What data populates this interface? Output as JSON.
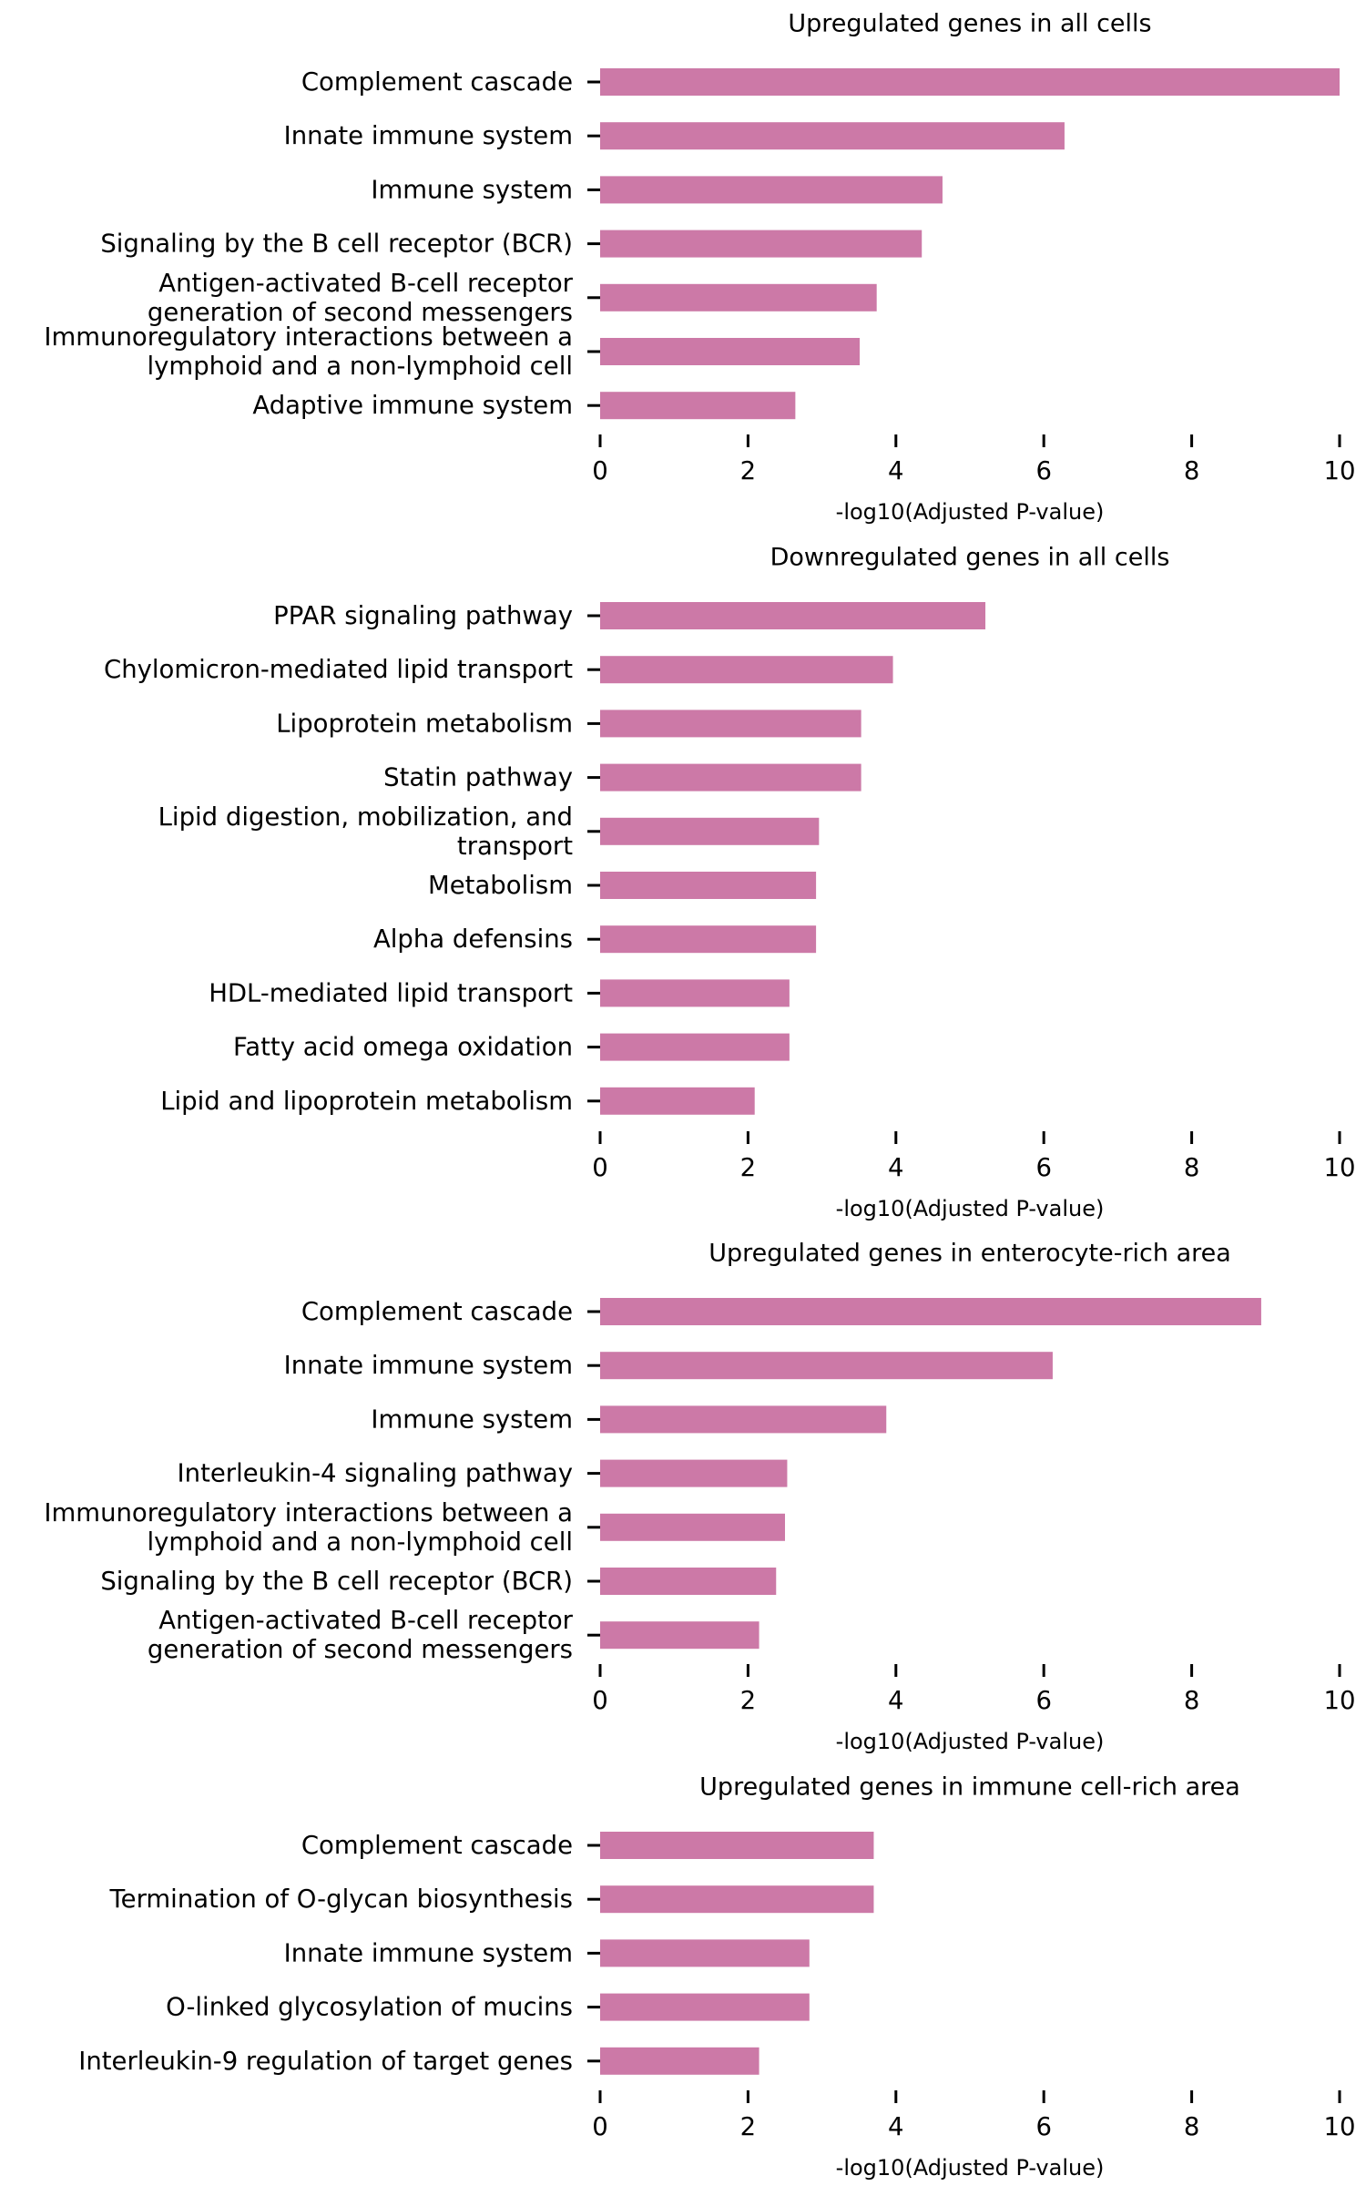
{
  "style": {
    "bar_color": "#cc79a7",
    "text_color": "#000000"
  },
  "chart_data": [
    {
      "type": "bar",
      "orientation": "horizontal",
      "title": "Upregulated genes in all cells",
      "xlabel": "-log10(Adjusted P-value)",
      "ylabel": "",
      "xlim": [
        0,
        10
      ],
      "xticks": [
        0,
        2,
        4,
        6,
        8,
        10
      ],
      "grid": false,
      "categories": [
        [
          "Complement cascade"
        ],
        [
          "Innate immune system"
        ],
        [
          "Immune system"
        ],
        [
          "Signaling by the B cell receptor (BCR)"
        ],
        [
          "Antigen-activated B-cell receptor",
          "generation of second messengers"
        ],
        [
          "Immunoregulatory interactions between a",
          "lymphoid and a non-lymphoid cell"
        ],
        [
          "Adaptive immune system"
        ]
      ],
      "values": [
        10.0,
        6.28,
        4.63,
        4.35,
        3.74,
        3.51,
        2.64
      ]
    },
    {
      "type": "bar",
      "orientation": "horizontal",
      "title": "Downregulated genes in all cells",
      "xlabel": "-log10(Adjusted P-value)",
      "ylabel": "",
      "xlim": [
        0,
        10
      ],
      "xticks": [
        0,
        2,
        4,
        6,
        8,
        10
      ],
      "grid": false,
      "categories": [
        [
          "PPAR signaling pathway"
        ],
        [
          "Chylomicron-mediated lipid transport"
        ],
        [
          "Lipoprotein metabolism"
        ],
        [
          "Statin pathway"
        ],
        [
          "Lipid digestion, mobilization, and",
          "transport"
        ],
        [
          "Metabolism"
        ],
        [
          "Alpha defensins"
        ],
        [
          "HDL-mediated lipid transport"
        ],
        [
          "Fatty acid omega oxidation"
        ],
        [
          "Lipid and lipoprotein metabolism"
        ]
      ],
      "values": [
        5.21,
        3.96,
        3.53,
        3.53,
        2.96,
        2.92,
        2.92,
        2.56,
        2.56,
        2.09
      ]
    },
    {
      "type": "bar",
      "orientation": "horizontal",
      "title": "Upregulated genes in enterocyte-rich area",
      "xlabel": "-log10(Adjusted P-value)",
      "ylabel": "",
      "xlim": [
        0,
        10
      ],
      "xticks": [
        0,
        2,
        4,
        6,
        8,
        10
      ],
      "grid": false,
      "categories": [
        [
          "Complement cascade"
        ],
        [
          "Innate immune system"
        ],
        [
          "Immune system"
        ],
        [
          "Interleukin-4 signaling pathway"
        ],
        [
          "Immunoregulatory interactions between a",
          "lymphoid and a non-lymphoid cell"
        ],
        [
          "Signaling by the B cell receptor (BCR)"
        ],
        [
          "Antigen-activated B-cell receptor",
          "generation of second messengers"
        ]
      ],
      "values": [
        8.94,
        6.12,
        3.87,
        2.53,
        2.5,
        2.38,
        2.15
      ]
    },
    {
      "type": "bar",
      "orientation": "horizontal",
      "title": "Upregulated genes in immune cell-rich area",
      "xlabel": "-log10(Adjusted P-value)",
      "ylabel": "",
      "xlim": [
        0,
        10
      ],
      "xticks": [
        0,
        2,
        4,
        6,
        8,
        10
      ],
      "grid": false,
      "categories": [
        [
          "Complement cascade"
        ],
        [
          "Termination of O-glycan biosynthesis"
        ],
        [
          "Innate immune system"
        ],
        [
          "O-linked glycosylation of mucins"
        ],
        [
          "Interleukin-9 regulation of target genes"
        ]
      ],
      "values": [
        3.7,
        3.7,
        2.83,
        2.83,
        2.15
      ]
    }
  ]
}
